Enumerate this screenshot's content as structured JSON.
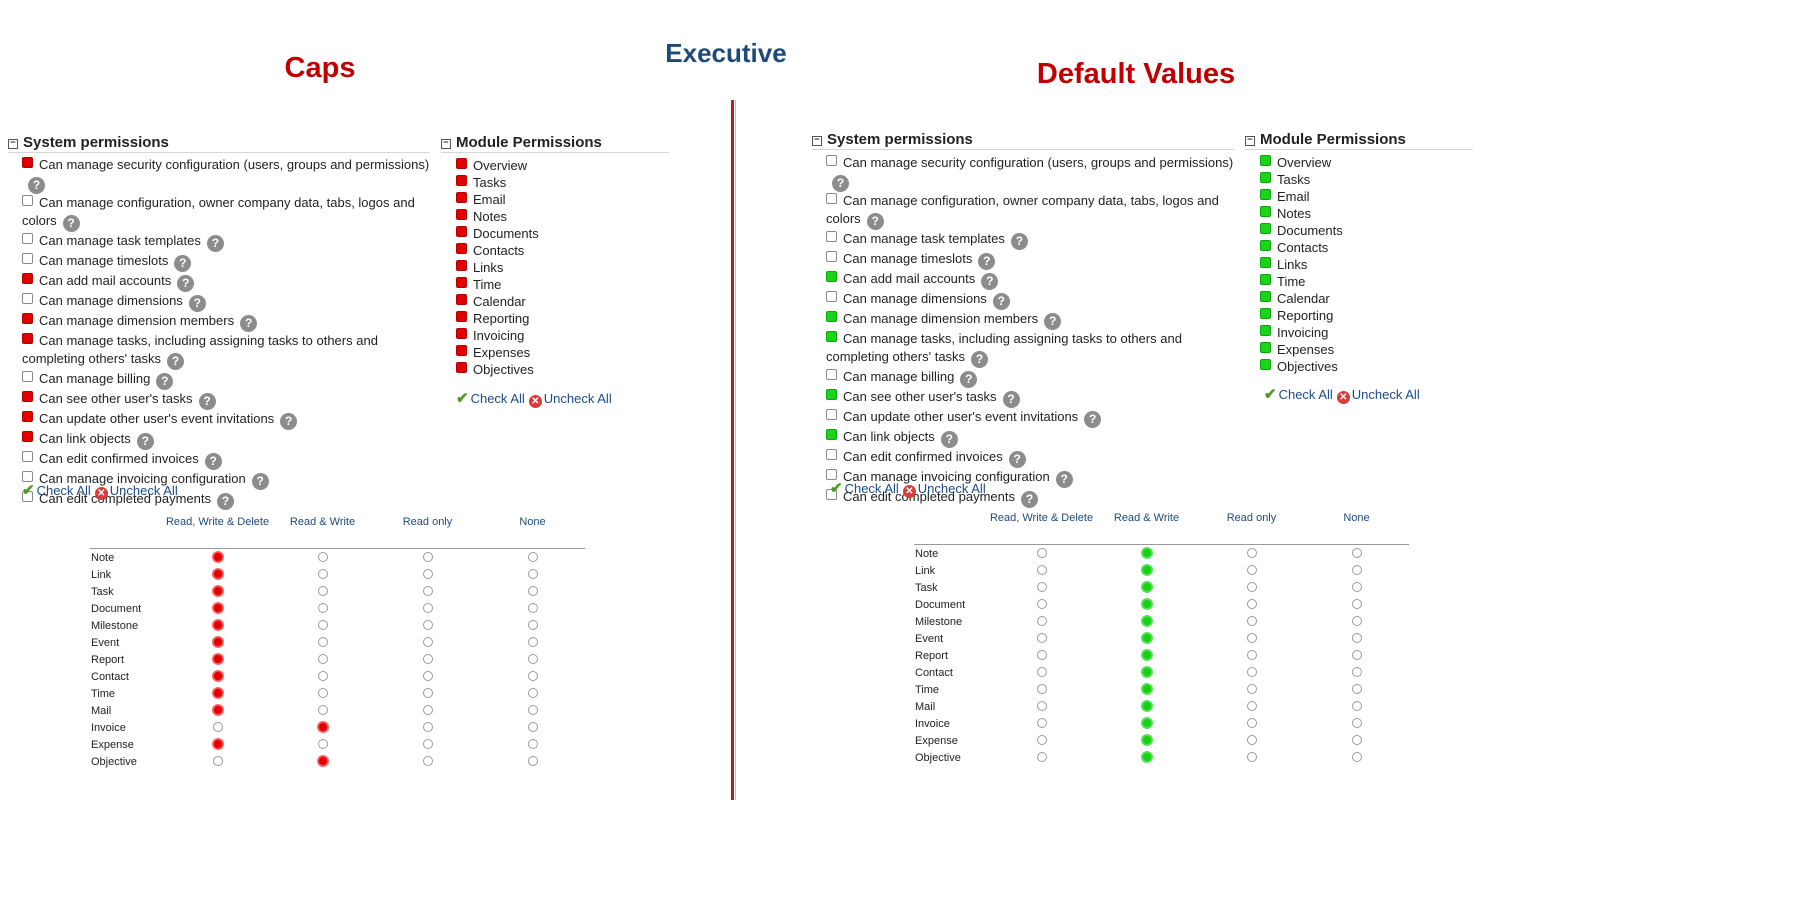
{
  "page_title": "Executive",
  "accent": {
    "on_caps": "#e00000",
    "on_defaults": "#19d419",
    "title_blue": "#1e4a7a",
    "heading_red": "#c00000"
  },
  "caps": {
    "title": "Caps",
    "system_header": "System permissions",
    "module_header": "Module Permissions",
    "system_perms": [
      {
        "label": "Can manage security configuration (users, groups and permissions)",
        "checked": true
      },
      {
        "label": "Can manage configuration, owner company data, tabs, logos and colors",
        "checked": false
      },
      {
        "label": "Can manage task templates",
        "checked": false
      },
      {
        "label": "Can manage timeslots",
        "checked": false
      },
      {
        "label": "Can add mail accounts",
        "checked": true
      },
      {
        "label": "Can manage dimensions",
        "checked": false
      },
      {
        "label": "Can manage dimension members",
        "checked": true
      },
      {
        "label": "Can manage tasks, including assigning tasks to others and completing others' tasks",
        "checked": true
      },
      {
        "label": "Can manage billing",
        "checked": false
      },
      {
        "label": "Can see other user's tasks",
        "checked": true
      },
      {
        "label": "Can update other user's event invitations",
        "checked": true
      },
      {
        "label": "Can link objects",
        "checked": true
      },
      {
        "label": "Can edit confirmed invoices",
        "checked": false
      },
      {
        "label": "Can manage invoicing configuration",
        "checked": false
      },
      {
        "label": "Can edit completed payments",
        "checked": false
      }
    ],
    "modules": [
      {
        "label": "Overview",
        "checked": true
      },
      {
        "label": "Tasks",
        "checked": true
      },
      {
        "label": "Email",
        "checked": true
      },
      {
        "label": "Notes",
        "checked": true
      },
      {
        "label": "Documents",
        "checked": true
      },
      {
        "label": "Contacts",
        "checked": true
      },
      {
        "label": "Links",
        "checked": true
      },
      {
        "label": "Time",
        "checked": true
      },
      {
        "label": "Calendar",
        "checked": true
      },
      {
        "label": "Reporting",
        "checked": true
      },
      {
        "label": "Invoicing",
        "checked": true
      },
      {
        "label": "Expenses",
        "checked": true
      },
      {
        "label": "Objectives",
        "checked": true
      }
    ],
    "check_all": "Check All",
    "uncheck_all": "Uncheck All",
    "columns": [
      "Read, Write & Delete",
      "Read & Write",
      "Read only",
      "None"
    ],
    "rows": [
      {
        "label": "Note",
        "level": 0
      },
      {
        "label": "Link",
        "level": 0
      },
      {
        "label": "Task",
        "level": 0
      },
      {
        "label": "Document",
        "level": 0
      },
      {
        "label": "Milestone",
        "level": 0
      },
      {
        "label": "Event",
        "level": 0
      },
      {
        "label": "Report",
        "level": 0
      },
      {
        "label": "Contact",
        "level": 0
      },
      {
        "label": "Time",
        "level": 0
      },
      {
        "label": "Mail",
        "level": 0
      },
      {
        "label": "Invoice",
        "level": 1
      },
      {
        "label": "Expense",
        "level": 0
      },
      {
        "label": "Objective",
        "level": 1
      }
    ]
  },
  "defaults": {
    "title": "Default Values",
    "system_header": "System permissions",
    "module_header": "Module Permissions",
    "system_perms": [
      {
        "label": "Can manage security configuration (users, groups and permissions)",
        "checked": false
      },
      {
        "label": "Can manage configuration, owner company data, tabs, logos and colors",
        "checked": false
      },
      {
        "label": "Can manage task templates",
        "checked": false
      },
      {
        "label": "Can manage timeslots",
        "checked": false
      },
      {
        "label": "Can add mail accounts",
        "checked": true
      },
      {
        "label": "Can manage dimensions",
        "checked": false
      },
      {
        "label": "Can manage dimension members",
        "checked": true
      },
      {
        "label": "Can manage tasks, including assigning tasks to others and completing others' tasks",
        "checked": true
      },
      {
        "label": "Can manage billing",
        "checked": false
      },
      {
        "label": "Can see other user's tasks",
        "checked": true
      },
      {
        "label": "Can update other user's event invitations",
        "checked": false
      },
      {
        "label": "Can link objects",
        "checked": true
      },
      {
        "label": "Can edit confirmed invoices",
        "checked": false
      },
      {
        "label": "Can manage invoicing configuration",
        "checked": false
      },
      {
        "label": "Can edit completed payments",
        "checked": false
      }
    ],
    "modules": [
      {
        "label": "Overview",
        "checked": true
      },
      {
        "label": "Tasks",
        "checked": true
      },
      {
        "label": "Email",
        "checked": true
      },
      {
        "label": "Notes",
        "checked": true
      },
      {
        "label": "Documents",
        "checked": true
      },
      {
        "label": "Contacts",
        "checked": true
      },
      {
        "label": "Links",
        "checked": true
      },
      {
        "label": "Time",
        "checked": true
      },
      {
        "label": "Calendar",
        "checked": true
      },
      {
        "label": "Reporting",
        "checked": true
      },
      {
        "label": "Invoicing",
        "checked": true
      },
      {
        "label": "Expenses",
        "checked": true
      },
      {
        "label": "Objectives",
        "checked": true
      }
    ],
    "check_all": "Check All",
    "uncheck_all": "Uncheck All",
    "columns": [
      "Read, Write & Delete",
      "Read & Write",
      "Read only",
      "None"
    ],
    "rows": [
      {
        "label": "Note",
        "level": 1
      },
      {
        "label": "Link",
        "level": 1
      },
      {
        "label": "Task",
        "level": 1
      },
      {
        "label": "Document",
        "level": 1
      },
      {
        "label": "Milestone",
        "level": 1
      },
      {
        "label": "Event",
        "level": 1
      },
      {
        "label": "Report",
        "level": 1
      },
      {
        "label": "Contact",
        "level": 1
      },
      {
        "label": "Time",
        "level": 1
      },
      {
        "label": "Mail",
        "level": 1
      },
      {
        "label": "Invoice",
        "level": 1
      },
      {
        "label": "Expense",
        "level": 1
      },
      {
        "label": "Objective",
        "level": 1
      }
    ]
  }
}
